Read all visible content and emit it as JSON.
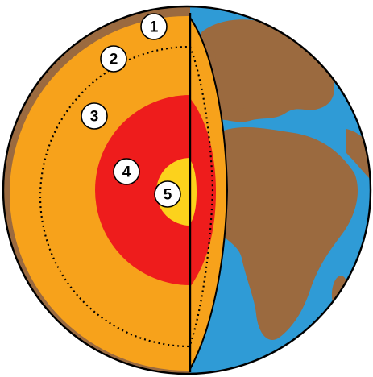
{
  "layer_labels": [
    "1",
    "2",
    "3",
    "4",
    "5"
  ],
  "colors": {
    "ocean": "#2f9bd6",
    "land": "#9b6a3f",
    "crust": "#9b6a3f",
    "mantle": "#f7a21b",
    "outer_core": "#ee1c1c",
    "inner_core": "#fcd21c",
    "outline": "#000000"
  }
}
